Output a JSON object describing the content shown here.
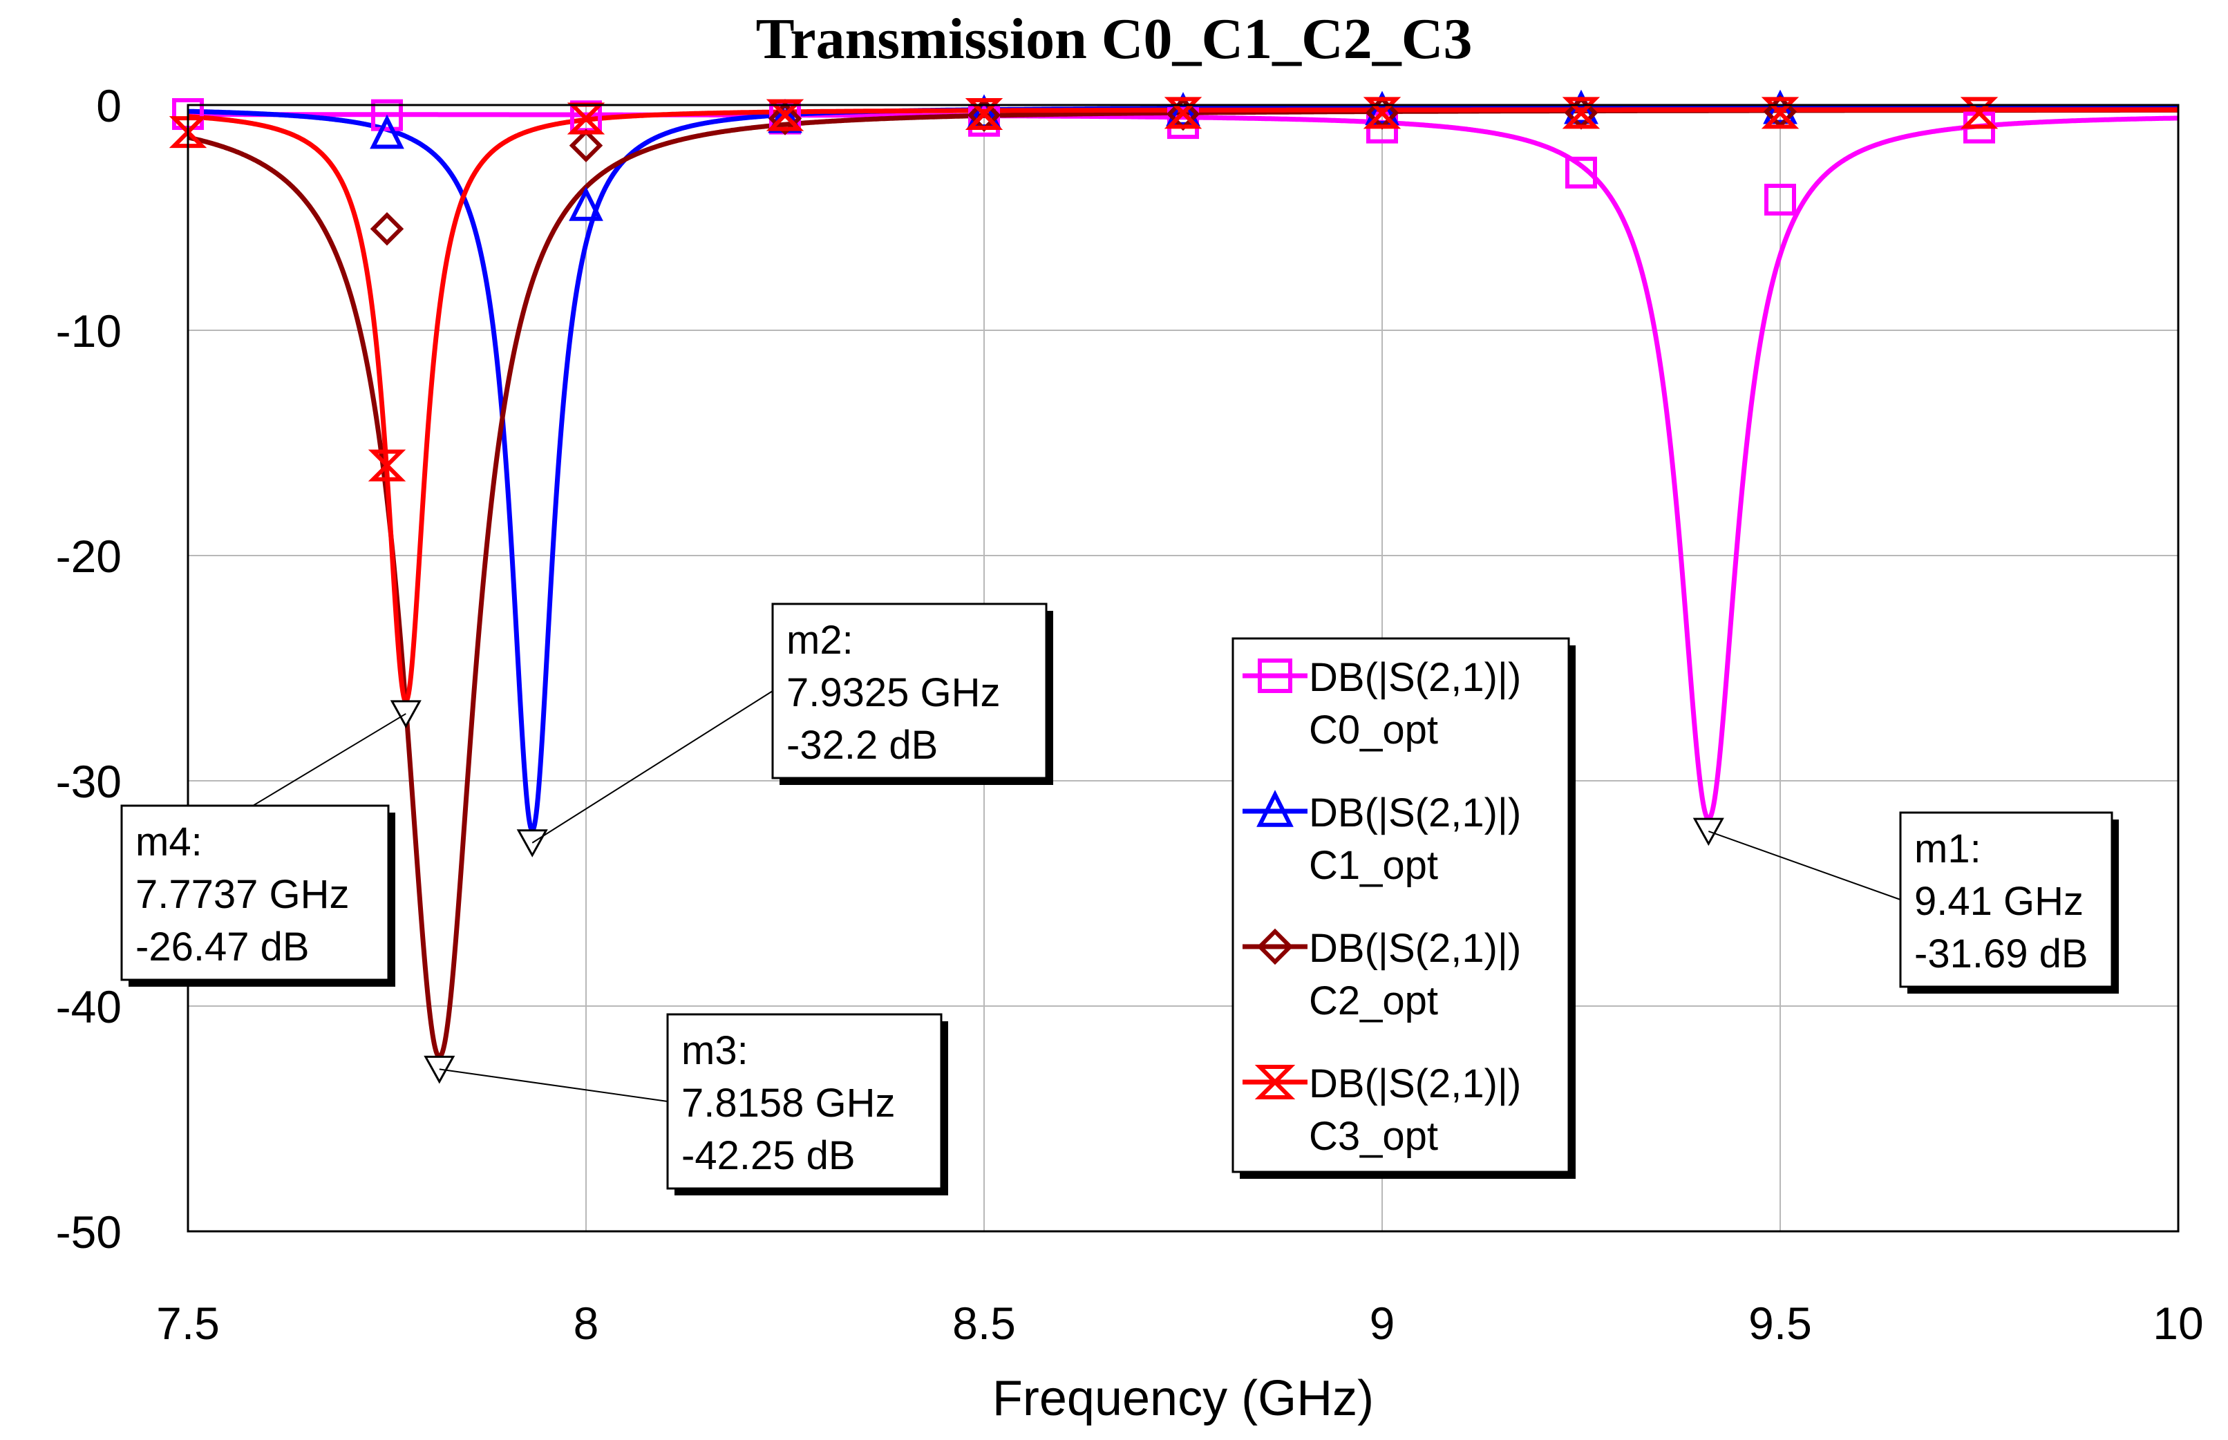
{
  "chart_data": {
    "type": "line",
    "title": "Transmission C0_C1_C2_C3",
    "xlabel": "Frequency (GHz)",
    "ylabel": "",
    "xlim": [
      7.5,
      10
    ],
    "ylim": [
      -50,
      0
    ],
    "xticks": [
      7.5,
      8,
      8.5,
      9,
      9.5,
      10
    ],
    "xtick_labels": [
      "7.5",
      "8",
      "8.5",
      "9",
      "9.5",
      "10"
    ],
    "yticks": [
      0,
      -10,
      -20,
      -30,
      -40,
      -50
    ],
    "ytick_labels": [
      "0",
      "-10",
      "-20",
      "-30",
      "-40",
      "-50"
    ],
    "grid": true,
    "legend_position": "center-right",
    "series": [
      {
        "name": "DB(|S(2,1)|)",
        "sublabel": "C0_opt",
        "color": "#ff00ff",
        "marker": "square",
        "resonance": {
          "f": 9.41,
          "depth": -31.69,
          "q": 0.09,
          "floor": -0.4
        },
        "marker_points": [
          {
            "x": 7.5,
            "y": -0.4
          },
          {
            "x": 7.75,
            "y": -0.45
          },
          {
            "x": 8.0,
            "y": -0.5
          },
          {
            "x": 8.25,
            "y": -0.6
          },
          {
            "x": 8.5,
            "y": -0.7
          },
          {
            "x": 8.75,
            "y": -0.8
          },
          {
            "x": 9.0,
            "y": -1.0
          },
          {
            "x": 9.25,
            "y": -3.0
          },
          {
            "x": 9.5,
            "y": -4.2
          },
          {
            "x": 9.75,
            "y": -1.0
          }
        ]
      },
      {
        "name": "DB(|S(2,1)|)",
        "sublabel": "C1_opt",
        "color": "#0000ff",
        "marker": "triangle",
        "resonance": {
          "f": 7.9325,
          "depth": -32.2,
          "q": 0.065,
          "floor": -0.1
        },
        "marker_points": [
          {
            "x": 7.75,
            "y": -1.3
          },
          {
            "x": 8.0,
            "y": -4.5
          },
          {
            "x": 8.25,
            "y": -0.6
          },
          {
            "x": 8.5,
            "y": -0.4
          },
          {
            "x": 8.75,
            "y": -0.3
          },
          {
            "x": 9.0,
            "y": -0.25
          },
          {
            "x": 9.25,
            "y": -0.2
          },
          {
            "x": 9.5,
            "y": -0.2
          }
        ]
      },
      {
        "name": "DB(|S(2,1)|)",
        "sublabel": "C2_opt",
        "color": "#8b0000",
        "marker": "diamond",
        "resonance": {
          "f": 7.8158,
          "depth": -42.25,
          "q": 0.11,
          "floor": -0.2
        },
        "marker_points": [
          {
            "x": 7.75,
            "y": -5.5
          },
          {
            "x": 8.0,
            "y": -1.8
          },
          {
            "x": 8.25,
            "y": -0.6
          },
          {
            "x": 8.5,
            "y": -0.45
          },
          {
            "x": 8.75,
            "y": -0.4
          },
          {
            "x": 9.0,
            "y": -0.35
          },
          {
            "x": 9.25,
            "y": -0.35
          },
          {
            "x": 9.5,
            "y": -0.3
          }
        ]
      },
      {
        "name": "DB(|S(2,1)|)",
        "sublabel": "C3_opt",
        "color": "#ff0000",
        "marker": "hourglass",
        "resonance": {
          "f": 7.7737,
          "depth": -26.47,
          "q": 0.06,
          "floor": -0.2
        },
        "marker_points": [
          {
            "x": 7.5,
            "y": -1.2
          },
          {
            "x": 7.75,
            "y": -16.0
          },
          {
            "x": 8.0,
            "y": -0.6
          },
          {
            "x": 8.25,
            "y": -0.45
          },
          {
            "x": 8.5,
            "y": -0.4
          },
          {
            "x": 8.75,
            "y": -0.35
          },
          {
            "x": 9.0,
            "y": -0.35
          },
          {
            "x": 9.25,
            "y": -0.35
          },
          {
            "x": 9.5,
            "y": -0.35
          },
          {
            "x": 9.75,
            "y": -0.35
          }
        ]
      }
    ],
    "markers": [
      {
        "id": "m1",
        "label": "m1:",
        "freq": "9.41 GHz",
        "value": "-31.69 dB",
        "x": 9.41,
        "y": -31.69
      },
      {
        "id": "m2",
        "label": "m2:",
        "freq": "7.9325 GHz",
        "value": "-32.2 dB",
        "x": 7.9325,
        "y": -32.2
      },
      {
        "id": "m3",
        "label": "m3:",
        "freq": "7.8158 GHz",
        "value": "-42.25 dB",
        "x": 7.8158,
        "y": -42.25
      },
      {
        "id": "m4",
        "label": "m4:",
        "freq": "7.7737 GHz",
        "value": "-26.47 dB",
        "x": 7.7737,
        "y": -26.47
      }
    ]
  }
}
